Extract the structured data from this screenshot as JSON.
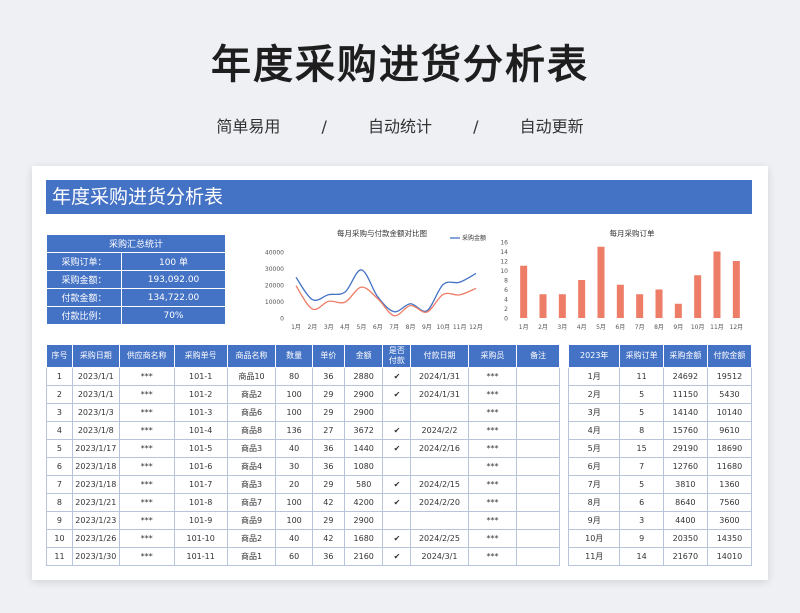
{
  "hero": {
    "title": "年度采购进货分析表"
  },
  "tagline": [
    "简单易用",
    "/",
    "自动统计",
    "/",
    "自动更新"
  ],
  "sheet": {
    "title": "年度采购进货分析表"
  },
  "summary": {
    "header": "采购汇总统计",
    "rows": [
      {
        "label": "采购订单：",
        "value": "100  单"
      },
      {
        "label": "采购金额：",
        "value": "193,092.00"
      },
      {
        "label": "付款金额：",
        "value": "134,722.00"
      },
      {
        "label": "付款比例：",
        "value": "70%"
      }
    ]
  },
  "chart_data": [
    {
      "type": "line",
      "title": "每月采购与付款金额对比图",
      "categories": [
        "1月",
        "2月",
        "3月",
        "4月",
        "5月",
        "6月",
        "7月",
        "8月",
        "9月",
        "10月",
        "11月",
        "12月"
      ],
      "series": [
        {
          "name": "采购金额",
          "values": [
            24692,
            11150,
            14140,
            15760,
            29190,
            12760,
            3810,
            8640,
            4400,
            20350,
            21670,
            27000
          ]
        },
        {
          "name": "",
          "values": [
            19512,
            5430,
            10140,
            9610,
            18690,
            11680,
            1360,
            7560,
            3600,
            14350,
            14010,
            18000
          ]
        }
      ],
      "y_ticks": [
        "40000",
        "30000",
        "20000",
        "10000",
        "0"
      ],
      "ylim": [
        0,
        40000
      ],
      "legend": "top-right",
      "colors": [
        "#4472c4",
        "#ed7d67"
      ]
    },
    {
      "type": "bar",
      "title": "每月采购订单",
      "categories": [
        "1月",
        "2月",
        "3月",
        "4月",
        "5月",
        "6月",
        "7月",
        "8月",
        "9月",
        "10月",
        "11月",
        "12月"
      ],
      "values": [
        11,
        5,
        5,
        8,
        15,
        7,
        5,
        6,
        3,
        9,
        14,
        12
      ],
      "y_ticks": [
        "16",
        "14",
        "12",
        "10",
        "8",
        "6",
        "4",
        "2",
        "0"
      ],
      "ylim": [
        0,
        16
      ],
      "colors": [
        "#ed7d67"
      ]
    }
  ],
  "main_table": {
    "headers": [
      "序号",
      "采购日期",
      "供应商名称",
      "采购单号",
      "商品名称",
      "数量",
      "单价",
      "金额",
      "是否付款",
      "付款日期",
      "采购员",
      "备注"
    ],
    "rows": [
      [
        "1",
        "2023/1/1",
        "***",
        "101-1",
        "商品10",
        "80",
        "36",
        "2880",
        "✔",
        "2024/1/31",
        "***",
        ""
      ],
      [
        "2",
        "2023/1/1",
        "***",
        "101-2",
        "商品2",
        "100",
        "29",
        "2900",
        "✔",
        "2024/1/31",
        "***",
        ""
      ],
      [
        "3",
        "2023/1/3",
        "***",
        "101-3",
        "商品6",
        "100",
        "29",
        "2900",
        "",
        "",
        "***",
        ""
      ],
      [
        "4",
        "2023/1/8",
        "***",
        "101-4",
        "商品8",
        "136",
        "27",
        "3672",
        "✔",
        "2024/2/2",
        "***",
        ""
      ],
      [
        "5",
        "2023/1/17",
        "***",
        "101-5",
        "商品3",
        "40",
        "36",
        "1440",
        "✔",
        "2024/2/16",
        "***",
        ""
      ],
      [
        "6",
        "2023/1/18",
        "***",
        "101-6",
        "商品4",
        "30",
        "36",
        "1080",
        "",
        "",
        "***",
        ""
      ],
      [
        "7",
        "2023/1/18",
        "***",
        "101-7",
        "商品3",
        "20",
        "29",
        "580",
        "✔",
        "2024/2/15",
        "***",
        ""
      ],
      [
        "8",
        "2023/1/21",
        "***",
        "101-8",
        "商品7",
        "100",
        "42",
        "4200",
        "✔",
        "2024/2/20",
        "***",
        ""
      ],
      [
        "9",
        "2023/1/23",
        "***",
        "101-9",
        "商品9",
        "100",
        "29",
        "2900",
        "",
        "",
        "***",
        ""
      ],
      [
        "10",
        "2023/1/26",
        "***",
        "101-10",
        "商品2",
        "40",
        "42",
        "1680",
        "✔",
        "2024/2/25",
        "***",
        ""
      ],
      [
        "11",
        "2023/1/30",
        "***",
        "101-11",
        "商品1",
        "60",
        "36",
        "2160",
        "✔",
        "2024/3/1",
        "***",
        ""
      ]
    ]
  },
  "side_table": {
    "headers": [
      "2023年",
      "采购订单",
      "采购金额",
      "付款金额"
    ],
    "rows": [
      [
        "1月",
        "11",
        "24692",
        "19512"
      ],
      [
        "2月",
        "5",
        "11150",
        "5430"
      ],
      [
        "3月",
        "5",
        "14140",
        "10140"
      ],
      [
        "4月",
        "8",
        "15760",
        "9610"
      ],
      [
        "5月",
        "15",
        "29190",
        "18690"
      ],
      [
        "6月",
        "7",
        "12760",
        "11680"
      ],
      [
        "7月",
        "5",
        "3810",
        "1360"
      ],
      [
        "8月",
        "6",
        "8640",
        "7560"
      ],
      [
        "9月",
        "3",
        "4400",
        "3600"
      ],
      [
        "10月",
        "9",
        "20350",
        "14350"
      ],
      [
        "11月",
        "14",
        "21670",
        "14010"
      ]
    ]
  }
}
